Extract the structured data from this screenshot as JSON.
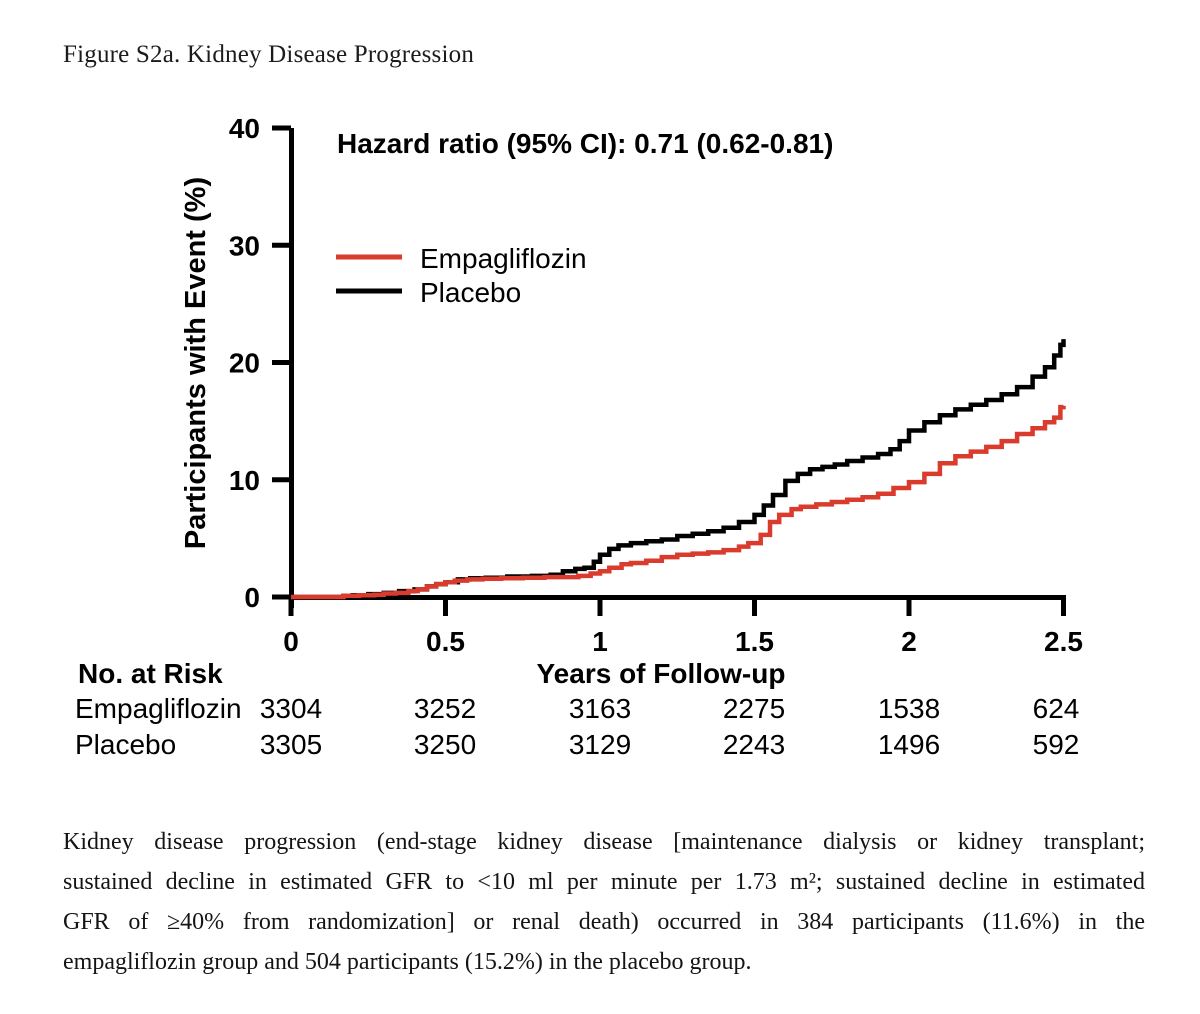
{
  "figure_title": "Figure S2a. Kidney Disease Progression",
  "chart_data": {
    "type": "line",
    "subtype": "kaplan-meier-step",
    "annotation": "Hazard ratio (95% CI): 0.71 (0.62-0.81)",
    "xlabel": "Years of Follow-up",
    "ylabel": "Participants with Event (%)",
    "xlim": [
      0,
      2.5
    ],
    "ylim": [
      0,
      40
    ],
    "x_ticks": [
      "0",
      "0.5",
      "1",
      "1.5",
      "2",
      "2.5"
    ],
    "y_ticks": [
      "0",
      "10",
      "20",
      "30",
      "40"
    ],
    "grid": false,
    "legend_position": "upper-left-inside",
    "series": [
      {
        "name": "Empagliflozin",
        "color": "#d93b2d",
        "points": [
          [
            0,
            0
          ],
          [
            0.13,
            0
          ],
          [
            0.17,
            0.1
          ],
          [
            0.22,
            0.15
          ],
          [
            0.27,
            0.2
          ],
          [
            0.3,
            0.3
          ],
          [
            0.34,
            0.35
          ],
          [
            0.38,
            0.5
          ],
          [
            0.41,
            0.65
          ],
          [
            0.44,
            0.9
          ],
          [
            0.47,
            1.1
          ],
          [
            0.5,
            1.25
          ],
          [
            0.53,
            1.4
          ],
          [
            0.57,
            1.5
          ],
          [
            0.62,
            1.55
          ],
          [
            0.68,
            1.6
          ],
          [
            0.75,
            1.65
          ],
          [
            0.82,
            1.7
          ],
          [
            0.88,
            1.7
          ],
          [
            0.93,
            1.8
          ],
          [
            0.97,
            2.0
          ],
          [
            1.0,
            2.2
          ],
          [
            1.03,
            2.5
          ],
          [
            1.07,
            2.8
          ],
          [
            1.1,
            2.9
          ],
          [
            1.15,
            3.1
          ],
          [
            1.2,
            3.4
          ],
          [
            1.25,
            3.6
          ],
          [
            1.3,
            3.7
          ],
          [
            1.35,
            3.8
          ],
          [
            1.4,
            4.0
          ],
          [
            1.45,
            4.3
          ],
          [
            1.48,
            4.6
          ],
          [
            1.52,
            5.3
          ],
          [
            1.55,
            6.4
          ],
          [
            1.58,
            7.0
          ],
          [
            1.62,
            7.5
          ],
          [
            1.65,
            7.7
          ],
          [
            1.7,
            7.9
          ],
          [
            1.75,
            8.1
          ],
          [
            1.8,
            8.3
          ],
          [
            1.85,
            8.5
          ],
          [
            1.9,
            8.8
          ],
          [
            1.95,
            9.3
          ],
          [
            2.0,
            9.8
          ],
          [
            2.05,
            10.5
          ],
          [
            2.1,
            11.4
          ],
          [
            2.15,
            12.0
          ],
          [
            2.2,
            12.4
          ],
          [
            2.25,
            12.8
          ],
          [
            2.3,
            13.3
          ],
          [
            2.35,
            13.9
          ],
          [
            2.4,
            14.4
          ],
          [
            2.44,
            14.9
          ],
          [
            2.47,
            15.3
          ],
          [
            2.49,
            16.2
          ],
          [
            2.5,
            16.3
          ]
        ]
      },
      {
        "name": "Placebo",
        "color": "#000000",
        "points": [
          [
            0,
            0
          ],
          [
            0.13,
            0
          ],
          [
            0.17,
            0.1
          ],
          [
            0.2,
            0.15
          ],
          [
            0.25,
            0.25
          ],
          [
            0.3,
            0.35
          ],
          [
            0.35,
            0.5
          ],
          [
            0.4,
            0.65
          ],
          [
            0.44,
            0.9
          ],
          [
            0.47,
            1.1
          ],
          [
            0.5,
            1.25
          ],
          [
            0.54,
            1.5
          ],
          [
            0.58,
            1.6
          ],
          [
            0.63,
            1.65
          ],
          [
            0.7,
            1.75
          ],
          [
            0.78,
            1.8
          ],
          [
            0.84,
            1.9
          ],
          [
            0.88,
            2.2
          ],
          [
            0.92,
            2.4
          ],
          [
            0.95,
            2.5
          ],
          [
            0.98,
            3.0
          ],
          [
            1.0,
            3.6
          ],
          [
            1.03,
            4.1
          ],
          [
            1.06,
            4.4
          ],
          [
            1.1,
            4.6
          ],
          [
            1.15,
            4.75
          ],
          [
            1.2,
            4.9
          ],
          [
            1.25,
            5.2
          ],
          [
            1.3,
            5.4
          ],
          [
            1.35,
            5.6
          ],
          [
            1.4,
            5.9
          ],
          [
            1.45,
            6.4
          ],
          [
            1.5,
            7.0
          ],
          [
            1.53,
            7.8
          ],
          [
            1.56,
            8.7
          ],
          [
            1.6,
            9.9
          ],
          [
            1.64,
            10.5
          ],
          [
            1.68,
            10.9
          ],
          [
            1.72,
            11.1
          ],
          [
            1.76,
            11.3
          ],
          [
            1.8,
            11.6
          ],
          [
            1.85,
            11.9
          ],
          [
            1.9,
            12.2
          ],
          [
            1.94,
            12.6
          ],
          [
            1.97,
            13.3
          ],
          [
            2.0,
            14.2
          ],
          [
            2.05,
            14.9
          ],
          [
            2.1,
            15.5
          ],
          [
            2.15,
            16.0
          ],
          [
            2.2,
            16.4
          ],
          [
            2.25,
            16.8
          ],
          [
            2.3,
            17.3
          ],
          [
            2.35,
            17.9
          ],
          [
            2.4,
            18.8
          ],
          [
            2.44,
            19.6
          ],
          [
            2.47,
            20.6
          ],
          [
            2.49,
            21.5
          ],
          [
            2.5,
            22.0
          ]
        ]
      }
    ]
  },
  "risk_table": {
    "header": "No. at Risk",
    "rows": [
      {
        "label": "Empagliflozin",
        "values": [
          "3304",
          "3252",
          "3163",
          "2275",
          "1538",
          "624"
        ]
      },
      {
        "label": "Placebo",
        "values": [
          "3305",
          "3250",
          "3129",
          "2243",
          "1496",
          "592"
        ]
      }
    ]
  },
  "caption": {
    "lines": [
      "Kidney disease progression (end-stage kidney disease [maintenance dialysis or kidney transplant;",
      "sustained decline in estimated GFR to <10 ml per minute per 1.73 m²; sustained decline in estimated",
      "GFR of ≥40% from randomization] or renal death) occurred in 384 participants (11.6%) in the",
      "empagliflozin group and 504 participants (15.2%) in the placebo group."
    ]
  }
}
